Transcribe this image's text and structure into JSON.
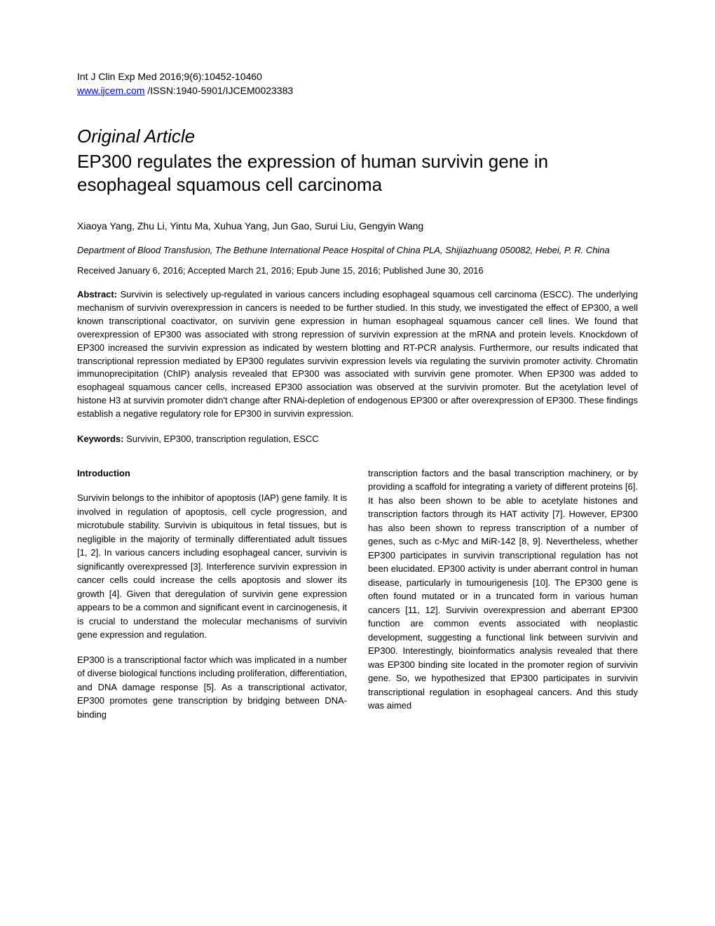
{
  "journal": {
    "citation": "Int J Clin Exp Med 2016;9(6):10452-10460",
    "link_text": "www.ijcem.com",
    "issn": " /ISSN:1940-5901/IJCEM0023383"
  },
  "article": {
    "type": "Original Article",
    "title": "EP300 regulates the expression of human survivin gene in esophageal squamous cell carcinoma"
  },
  "authors": "Xiaoya Yang, Zhu Li, Yintu Ma, Xuhua Yang, Jun Gao, Surui Liu, Gengyin Wang",
  "affiliation": "Department of Blood Transfusion, The Bethune International Peace Hospital of China PLA, Shijiazhuang 050082, Hebei, P. R. China",
  "dates": "Received January 6, 2016; Accepted March 21, 2016; Epub June 15, 2016; Published June 30, 2016",
  "abstract": {
    "label": "Abstract:",
    "text": " Survivin is selectively up-regulated in various cancers including esophageal squamous cell carcinoma (ESCC). The underlying mechanism of survivin overexpression in cancers is needed to be further studied. In this study, we investigated the effect of EP300, a well known transcriptional coactivator, on survivin gene expression in human esophageal squamous cancer cell lines. We found that overexpression of EP300 was associated with strong repression of survivin expression at the mRNA and protein levels. Knockdown of EP300 increased the survivin expression as indicated by western blotting and RT-PCR analysis. Furthermore, our results indicated that transcriptional repression mediated by EP300 regulates survivin expression levels via regulating the survivin promoter activity. Chromatin immunoprecipitation (ChIP) analysis revealed that EP300 was associated with survivin gene promoter. When EP300 was added to esophageal squamous cancer cells, increased EP300 association was observed at the survivin promoter. But the acetylation level of histone H3 at survivin promoter didn't change after RNAi-depletion of endogenous EP300 or after overexpression of EP300. These findings establish a negative regulatory role for EP300 in survivin expression."
  },
  "keywords": {
    "label": "Keywords:",
    "text": " Survivin, EP300, transcription regulation, ESCC"
  },
  "body": {
    "introduction_heading": "Introduction",
    "col1_p1": "Survivin belongs to the inhibitor of apoptosis (IAP) gene family. It is involved in regulation of apoptosis, cell cycle progression, and microtubule stability. Survivin is ubiquitous in fetal tissues, but is negligible in the majority of terminally differentiated adult tissues [1, 2]. In various cancers including esophageal cancer, survivin is significantly overexpressed [3]. Interference survivin expression in cancer cells could increase the cells apoptosis and slower its growth [4]. Given that deregulation of survivin gene expression appears to be a common and significant event in carcinogenesis, it is crucial to understand the molecular mechanisms of survivin gene expression and regulation.",
    "col1_p2": "EP300 is a transcriptional factor which was implicated in a number of diverse biological functions including proliferation, differentiation, and DNA damage response [5]. As a transcriptional activator, EP300 promotes gene transcription by bridging between DNA-binding",
    "col2_p1": "transcription factors and the basal transcription machinery, or by providing a scaffold for integrating a variety of different proteins [6]. It has also been shown to be able to acetylate histones and transcription factors through its HAT activity [7]. However, EP300 has also been shown to repress transcription of a number of genes, such as c-Myc and MiR-142 [8, 9]. Nevertheless, whether EP300 participates in survivin transcriptional regulation has not been elucidated. EP300 activity is under aberrant control in human disease, particularly in tumourigenesis [10]. The EP300 gene is often found mutated or in a truncated form in various human cancers [11, 12]. Survivin overexpression and aberrant EP300 function are common events associated with neoplastic development, suggesting a functional link between survivin and EP300. Interestingly, bioinformatics analysis revealed that there was EP300 binding site located in the promoter region of survivin gene. So, we hypothesized that EP300 participates in survivin transcriptional regulation in esophageal cancers. And this study was aimed"
  }
}
